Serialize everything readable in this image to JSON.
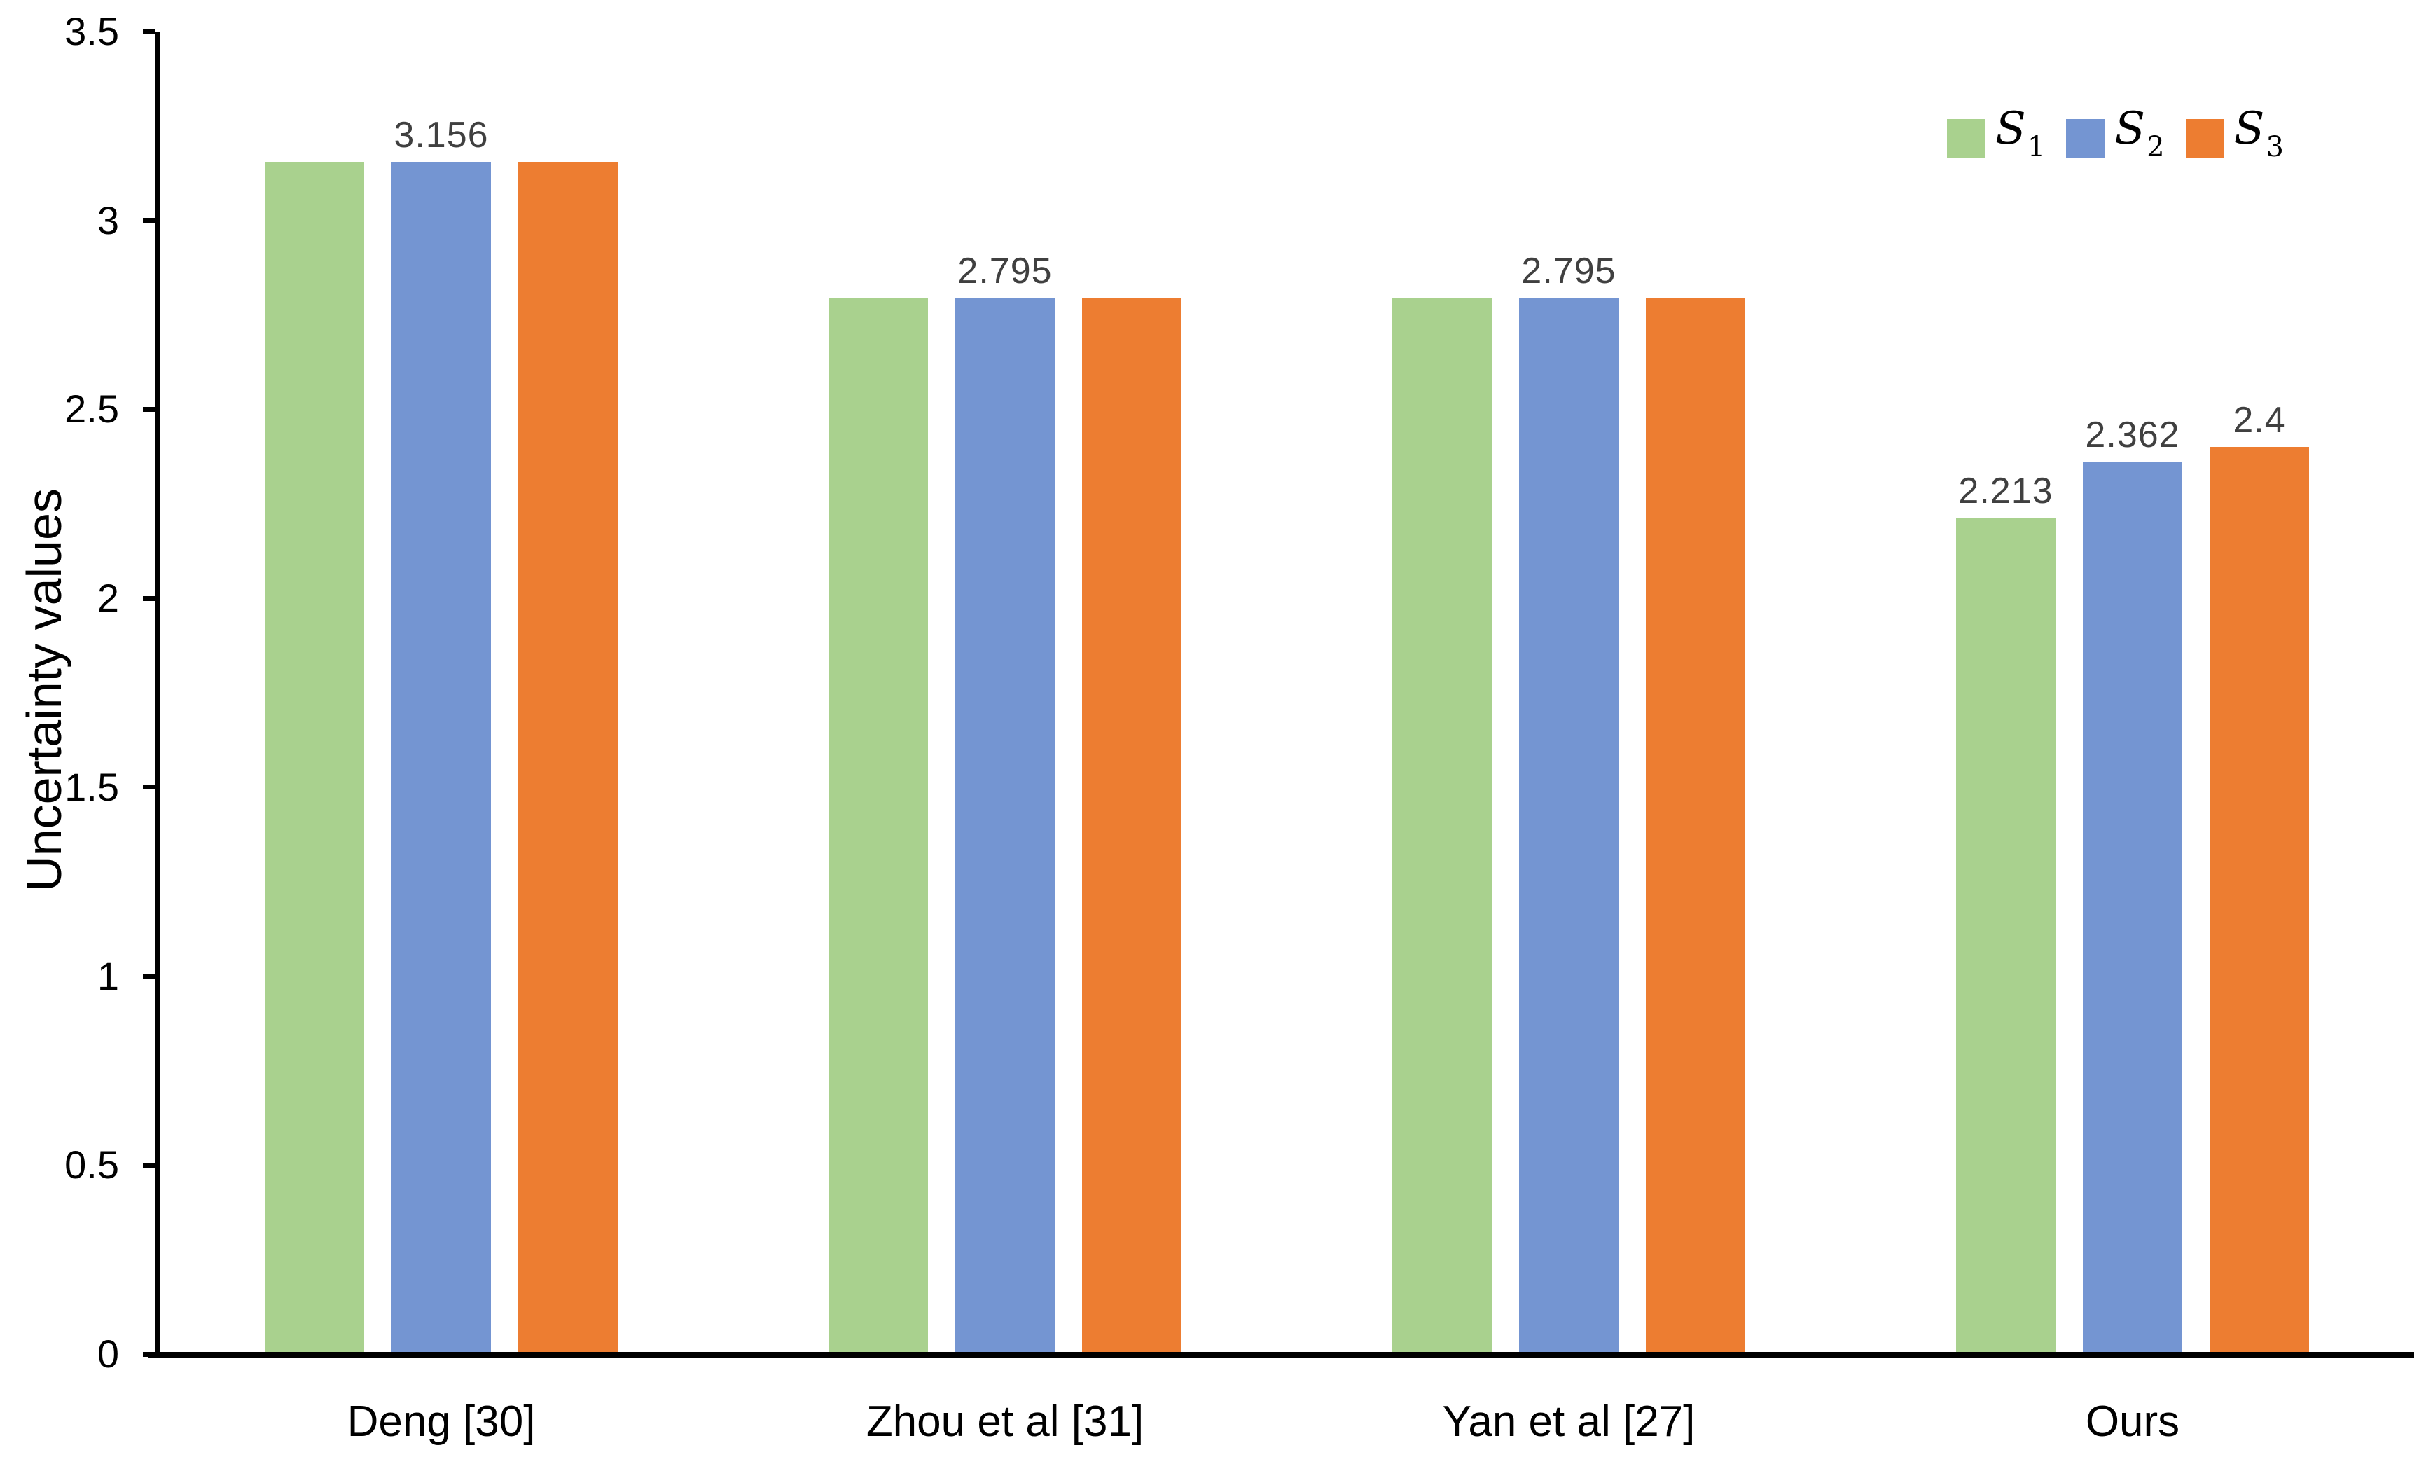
{
  "figure": {
    "background": "#FFFFFF"
  },
  "chart_data": {
    "type": "bar",
    "title": "",
    "xlabel": "",
    "ylabel": "Uncertainty values",
    "categories": [
      "Deng [30]",
      "Zhou et al [31]",
      "Yan et al [27]",
      "Ours"
    ],
    "series": [
      {
        "name": "S1",
        "legend_base": "S",
        "legend_sub": "1",
        "color": "#A9D18E",
        "values": [
          3.156,
          2.795,
          2.795,
          2.213
        ]
      },
      {
        "name": "S2",
        "legend_base": "S",
        "legend_sub": "2",
        "color": "#7495D2",
        "values": [
          3.156,
          2.795,
          2.795,
          2.362
        ]
      },
      {
        "name": "S3",
        "legend_base": "S",
        "legend_sub": "3",
        "color": "#ED7D31",
        "values": [
          3.156,
          2.795,
          2.795,
          2.4
        ]
      }
    ],
    "bar_labels": [
      {
        "category_index": 0,
        "series_index": 1,
        "text": "3.156",
        "align": "group-center"
      },
      {
        "category_index": 1,
        "series_index": 1,
        "text": "2.795",
        "align": "group-center"
      },
      {
        "category_index": 2,
        "series_index": 1,
        "text": "2.795",
        "align": "group-center"
      },
      {
        "category_index": 3,
        "series_index": 0,
        "text": "2.213",
        "align": "bar-center"
      },
      {
        "category_index": 3,
        "series_index": 1,
        "text": "2.362",
        "align": "bar-center"
      },
      {
        "category_index": 3,
        "series_index": 2,
        "text": "2.4",
        "align": "bar-center"
      }
    ],
    "ylim": [
      0,
      3.5
    ],
    "yticks": [
      {
        "value": 0,
        "label": "0"
      },
      {
        "value": 0.5,
        "label": "0.5"
      },
      {
        "value": 1,
        "label": "1"
      },
      {
        "value": 1.5,
        "label": "1.5"
      },
      {
        "value": 2,
        "label": "2"
      },
      {
        "value": 2.5,
        "label": "2.5"
      },
      {
        "value": 3,
        "label": "3"
      },
      {
        "value": 3.5,
        "label": "3.5"
      }
    ],
    "grid": false,
    "legend_position": "top-right",
    "colors": {
      "axis": "#000000",
      "tick_text": "#000000",
      "category_text": "#000000",
      "data_label_text": "#404040"
    }
  }
}
